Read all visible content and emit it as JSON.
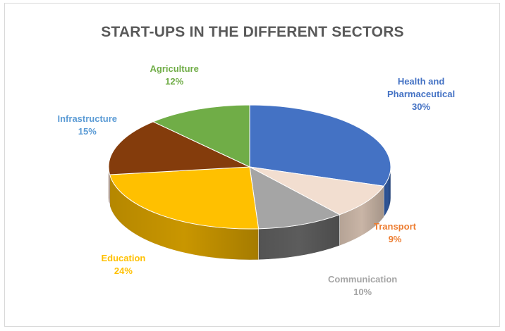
{
  "chart_data": {
    "type": "pie",
    "title": "START-UPS IN THE DIFFERENT SECTORS",
    "slices": [
      {
        "label": "Health and Pharmaceutical",
        "label_lines": [
          "Health and",
          "Pharmaceutical"
        ],
        "value": 30,
        "pct_label": "30%",
        "color": "#4472c4",
        "side_color": "#2e5597",
        "label_color": "#4472c4"
      },
      {
        "label": "Transport",
        "label_lines": [
          "Transport"
        ],
        "value": 9,
        "pct_label": "9%",
        "color": "#f2ded0",
        "side_color": "#c9b5a6",
        "label_color": "#ed7d31"
      },
      {
        "label": "Communication",
        "label_lines": [
          "Communication"
        ],
        "value": 10,
        "pct_label": "10%",
        "color": "#a5a5a5",
        "side_color": "#5c5c5c",
        "label_color": "#a5a5a5"
      },
      {
        "label": "Education",
        "label_lines": [
          "Education"
        ],
        "value": 24,
        "pct_label": "24%",
        "color": "#ffc000",
        "side_color": "#c99600",
        "label_color": "#ffc000"
      },
      {
        "label": "Infrastructure",
        "label_lines": [
          "Infrastructure"
        ],
        "value": 15,
        "pct_label": "15%",
        "color": "#843c0c",
        "side_color": "#5a2908",
        "label_color": "#5b9bd5"
      },
      {
        "label": "Agriculture",
        "label_lines": [
          "Agriculture"
        ],
        "value": 12,
        "pct_label": "12%",
        "color": "#70ad47",
        "side_color": "#4e7a32",
        "label_color": "#70ad47"
      }
    ]
  }
}
